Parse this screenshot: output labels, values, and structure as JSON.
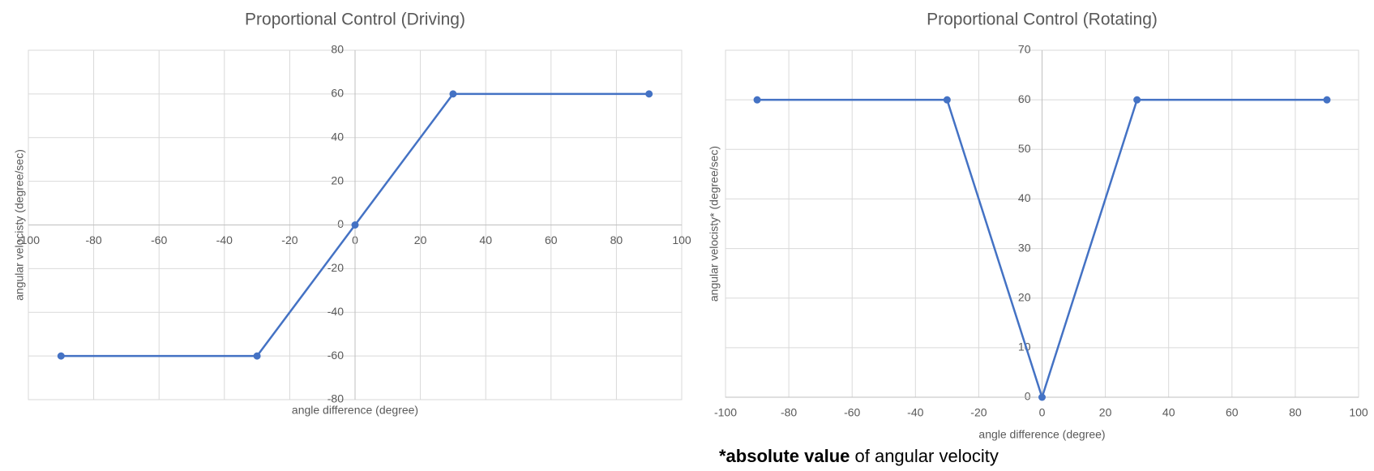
{
  "chart_data": [
    {
      "type": "line",
      "title": "Proportional Control (Driving)",
      "x_label": "angle difference (degree)",
      "y_label": "angular velocisty (degree/sec)",
      "x": [
        -90,
        -30,
        0,
        30,
        90
      ],
      "series": [
        {
          "color": "#4472c4",
          "values": [
            -60,
            -60,
            0,
            60,
            60
          ]
        }
      ],
      "xlim": [
        -100,
        100
      ],
      "xticks": [
        -100,
        -80,
        -60,
        -40,
        -20,
        0,
        20,
        40,
        60,
        80,
        100
      ],
      "ylim": [
        -80,
        80
      ],
      "yticks": [
        -80,
        -60,
        -40,
        -20,
        0,
        20,
        40,
        60,
        80
      ],
      "grid": true
    },
    {
      "type": "line",
      "title": "Proportional Control (Rotating)",
      "x_label": "angle difference (degree)",
      "y_label": "angular velocisty* (degree/sec)",
      "x": [
        -90,
        -30,
        0,
        30,
        90
      ],
      "series": [
        {
          "color": "#4472c4",
          "values": [
            60,
            60,
            0,
            60,
            60
          ]
        }
      ],
      "xlim": [
        -100,
        100
      ],
      "xticks": [
        -100,
        -80,
        -60,
        -40,
        -20,
        0,
        20,
        40,
        60,
        80,
        100
      ],
      "ylim": [
        0,
        70
      ],
      "yticks": [
        0,
        10,
        20,
        30,
        40,
        50,
        60,
        70
      ],
      "grid": true
    }
  ],
  "footnote": {
    "bold": "*absolute value",
    "rest": " of angular velocity"
  }
}
